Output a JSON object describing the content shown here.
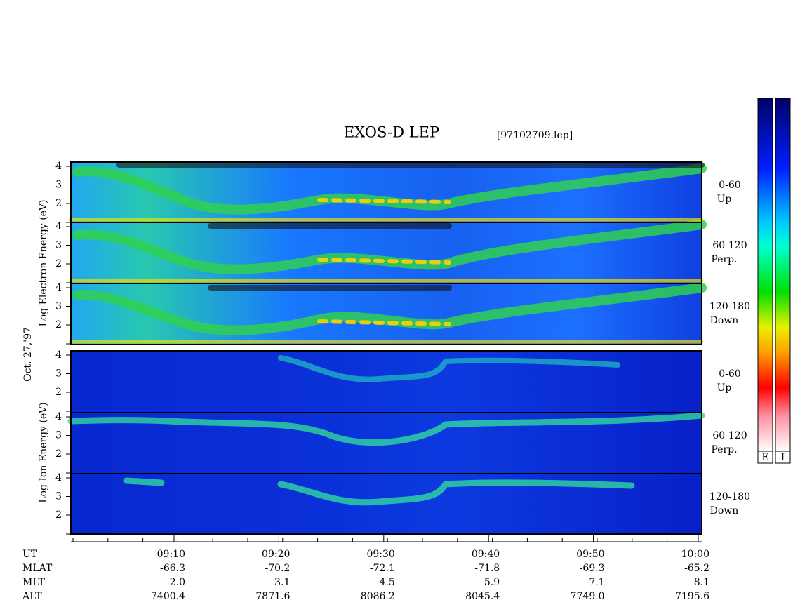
{
  "header": {
    "title": "EXOS-D LEP",
    "file": "[97102709.lep]"
  },
  "axis_labels": {
    "electron": "Log Electron Energy (eV)",
    "date": "Oct. 27,'97",
    "ion": "Log Ion Energy (eV)"
  },
  "panels": [
    {
      "yticks": [
        4,
        3,
        2
      ],
      "pitch": "0-60",
      "direction": "Up"
    },
    {
      "yticks": [
        4,
        3,
        2
      ],
      "pitch": "60-120",
      "direction": "Perp."
    },
    {
      "yticks": [
        4,
        3,
        2
      ],
      "pitch": "120-180",
      "direction": "Down"
    },
    {
      "yticks": [
        4,
        3,
        2
      ],
      "pitch": "0-60",
      "direction": "Up"
    },
    {
      "yticks": [
        4,
        3,
        2
      ],
      "pitch": "60-120",
      "direction": "Perp."
    },
    {
      "yticks": [
        4,
        3,
        2
      ],
      "pitch": "120-180",
      "direction": "Down"
    }
  ],
  "table": {
    "row_labels": [
      "UT",
      "MLAT",
      "MLT",
      "ALT"
    ],
    "rows": [
      [
        "09:10",
        "09:20",
        "09:30",
        "09:40",
        "09:50",
        "10:00"
      ],
      [
        "-66.3",
        "-70.2",
        "-72.1",
        "-71.8",
        "-69.3",
        "-65.2"
      ],
      [
        "2.0",
        "3.1",
        "4.5",
        "5.9",
        "7.1",
        "8.1"
      ],
      [
        "7400.4",
        "7871.6",
        "8086.2",
        "8045.4",
        "7749.0",
        "7195.6"
      ]
    ]
  },
  "colorbars": [
    "E",
    "I"
  ]
}
